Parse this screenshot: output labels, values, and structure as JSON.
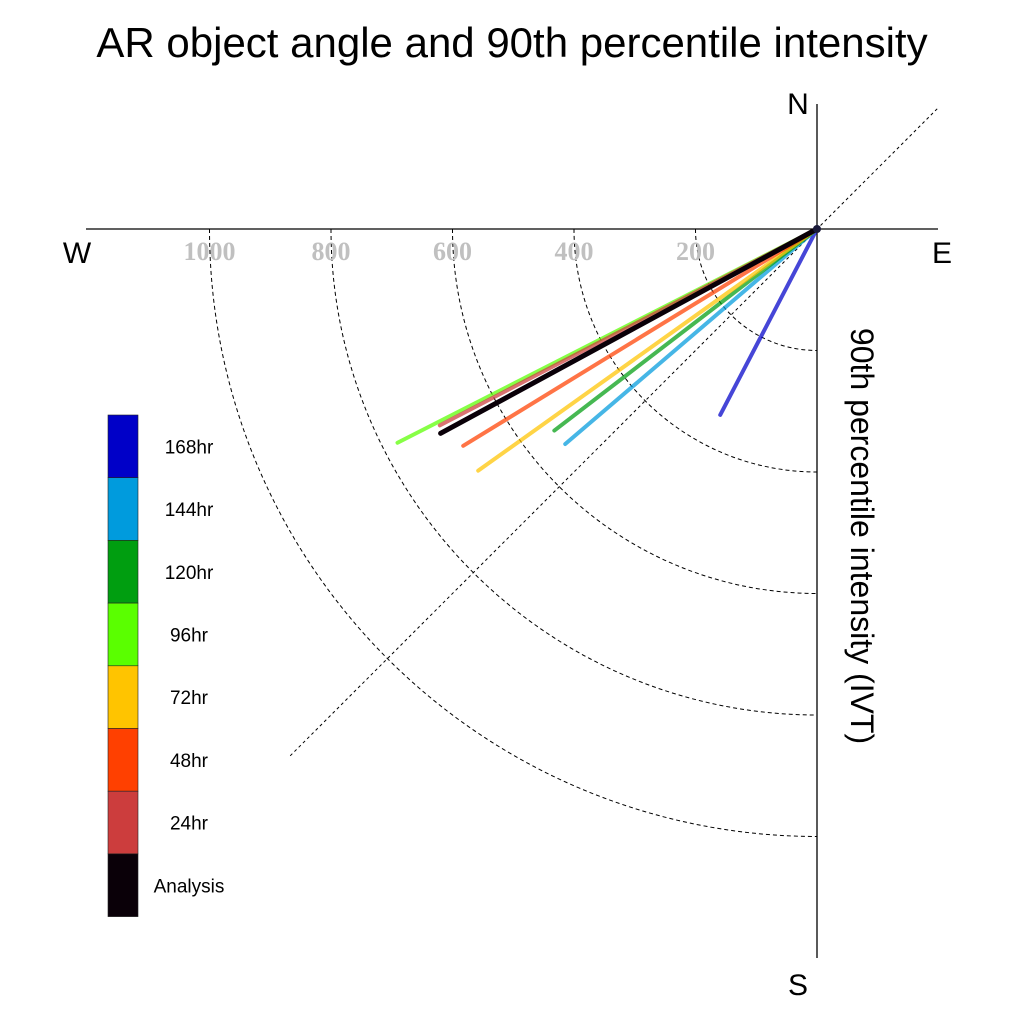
{
  "chart_data": {
    "type": "polar-vector",
    "title": "AR object angle and 90th percentile intensity",
    "ylabel": "90th percentile intensity (IVT)",
    "compass": {
      "north": "N",
      "south": "S",
      "east": "E",
      "west": "W"
    },
    "rings": [
      {
        "value": 200,
        "label": "200"
      },
      {
        "value": 400,
        "label": "400"
      },
      {
        "value": 600,
        "label": "600"
      },
      {
        "value": 800,
        "label": "800"
      },
      {
        "value": 1000,
        "label": "1000"
      }
    ],
    "rlim": [
      0,
      1150
    ],
    "diagonal_reference_deg": 45,
    "series": [
      {
        "name": "Analysis",
        "color": "#0a0008",
        "angle_deg": 61.5,
        "intensity": 705
      },
      {
        "name": "24hr",
        "color": "#cc3d3d",
        "angle_deg": 62.5,
        "intensity": 700
      },
      {
        "name": "48hr",
        "color": "#ff4000",
        "angle_deg": 58.5,
        "intensity": 683
      },
      {
        "name": "72hr",
        "color": "#ffc400",
        "angle_deg": 54.5,
        "intensity": 685
      },
      {
        "name": "96hr",
        "color": "#5aff00",
        "angle_deg": 63.0,
        "intensity": 775
      },
      {
        "name": "120hr",
        "color": "#009e10",
        "angle_deg": 52.5,
        "intensity": 545
      },
      {
        "name": "144hr",
        "color": "#009bdd",
        "angle_deg": 49.5,
        "intensity": 545
      },
      {
        "name": "168hr",
        "color": "#0000c8",
        "angle_deg": 27.5,
        "intensity": 345
      }
    ],
    "legend": {
      "position": "left",
      "order_top_to_bottom": [
        "168hr",
        "144hr",
        "120hr",
        "96hr",
        "72hr",
        "48hr",
        "24hr",
        "Analysis"
      ]
    }
  }
}
